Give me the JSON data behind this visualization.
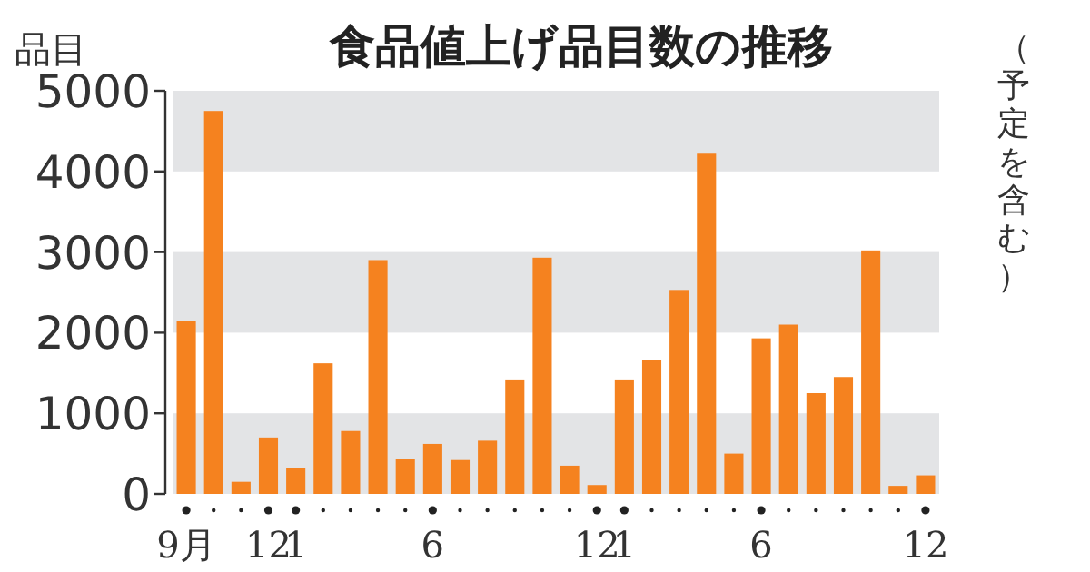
{
  "chart_data": {
    "type": "bar",
    "title": "食品値上げ品目数の推移",
    "ylabel": "品目",
    "annotations": [
      "（予定を含む）"
    ],
    "categories": [
      "9月",
      null,
      null,
      "12",
      "1",
      null,
      null,
      null,
      null,
      "6",
      null,
      null,
      null,
      null,
      null,
      "12",
      "1",
      null,
      null,
      null,
      null,
      "6",
      null,
      null,
      null,
      null,
      null,
      "12"
    ],
    "values": [
      2150,
      4750,
      150,
      700,
      320,
      1620,
      780,
      2900,
      430,
      620,
      420,
      660,
      1420,
      2930,
      350,
      110,
      1420,
      1660,
      2530,
      4220,
      500,
      1930,
      2100,
      1250,
      1450,
      3020,
      100,
      230
    ],
    "color": "#f5821f",
    "ylim": [
      0,
      5000
    ],
    "yticks": [
      0,
      1000,
      2000,
      3000,
      4000,
      5000
    ],
    "grid": false,
    "bands": [
      {
        "axis": "y",
        "from": 0,
        "to": 1000,
        "color": "#e3e4e6"
      },
      {
        "axis": "y",
        "from": 2000,
        "to": 3000,
        "color": "#e3e4e6"
      },
      {
        "axis": "y",
        "from": 4000,
        "to": 5000,
        "color": "#e3e4e6"
      }
    ]
  }
}
